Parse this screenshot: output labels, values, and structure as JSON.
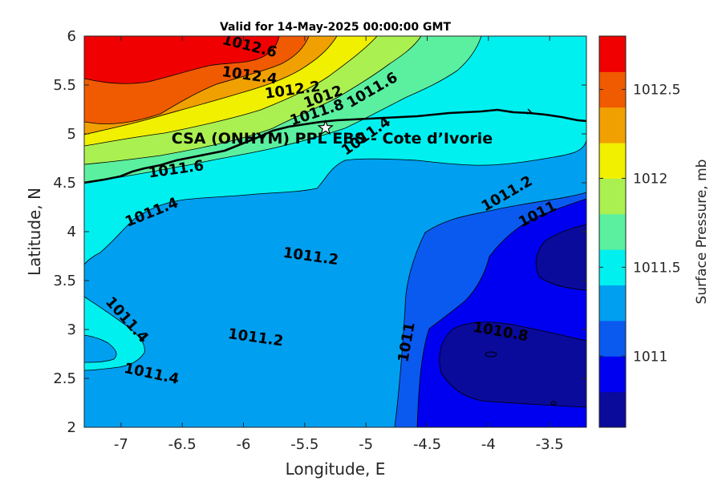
{
  "chart_data": {
    "type": "heatmap",
    "subtype": "filled-contour",
    "title": "Valid for 14-May-2025 00:00:00 GMT",
    "xlabel": "Longitude, E",
    "ylabel": "Latitude, N",
    "xlim": [
      -7.3,
      -3.2
    ],
    "ylim": [
      2,
      6
    ],
    "xticks": [
      -7,
      -6.5,
      -6,
      -5.5,
      -5,
      -4.5,
      -4,
      -3.5
    ],
    "yticks": [
      2,
      2.5,
      3,
      3.5,
      4,
      4.5,
      5,
      5.5,
      6
    ],
    "colorbar": {
      "label": "Surface Pressure, mb",
      "range": [
        1010.6,
        1012.8
      ],
      "ticks": [
        1011,
        1011.5,
        1012,
        1012.5
      ],
      "levels": [
        1010.6,
        1010.8,
        1011.0,
        1011.2,
        1011.4,
        1011.6,
        1011.8,
        1012.0,
        1012.2,
        1012.4,
        1012.6,
        1012.8
      ],
      "colors": [
        "#0a0a9b",
        "#0000f0",
        "#0a5af0",
        "#009ff0",
        "#00f0f0",
        "#5af0a0",
        "#aaf050",
        "#f0f000",
        "#f0a000",
        "#f05a00",
        "#f00000",
        "#a00000"
      ]
    },
    "contour_labels": [
      {
        "text": "1012.6",
        "lon": -5.95,
        "lat": 5.9,
        "angle": 14
      },
      {
        "text": "1012.4",
        "lon": -5.95,
        "lat": 5.6,
        "angle": 8
      },
      {
        "text": "1012.2",
        "lon": -5.6,
        "lat": 5.45,
        "angle": -8
      },
      {
        "text": "1012",
        "lon": -5.35,
        "lat": 5.38,
        "angle": -20
      },
      {
        "text": "1011.8",
        "lon": -5.4,
        "lat": 5.22,
        "angle": -18
      },
      {
        "text": "1011.6",
        "lon": -4.95,
        "lat": 5.45,
        "angle": -30
      },
      {
        "text": "1011.4",
        "lon": -5.0,
        "lat": 4.98,
        "angle": -35
      },
      {
        "text": "1011.6",
        "lon": -6.55,
        "lat": 4.64,
        "angle": -8
      },
      {
        "text": "1011.4",
        "lon": -6.75,
        "lat": 4.2,
        "angle": -22
      },
      {
        "text": "1011.2",
        "lon": -5.45,
        "lat": 3.75,
        "angle": 8
      },
      {
        "text": "1011.2",
        "lon": -3.85,
        "lat": 4.39,
        "angle": -30
      },
      {
        "text": "1011",
        "lon": -3.6,
        "lat": 4.18,
        "angle": -27
      },
      {
        "text": "1011.4",
        "lon": -6.95,
        "lat": 3.1,
        "angle": 48
      },
      {
        "text": "1011.2",
        "lon": -5.9,
        "lat": 2.92,
        "angle": 8
      },
      {
        "text": "1011.4",
        "lon": -6.75,
        "lat": 2.55,
        "angle": 12
      },
      {
        "text": "1011",
        "lon": -4.67,
        "lat": 2.87,
        "angle": -80
      },
      {
        "text": "1010.8",
        "lon": -3.9,
        "lat": 2.98,
        "angle": 10
      }
    ],
    "site": {
      "name": "CSA (ONHYM) PPL EBS - Cote d’Ivorie",
      "lon": -5.33,
      "lat": 5.06,
      "marker": "star"
    }
  }
}
